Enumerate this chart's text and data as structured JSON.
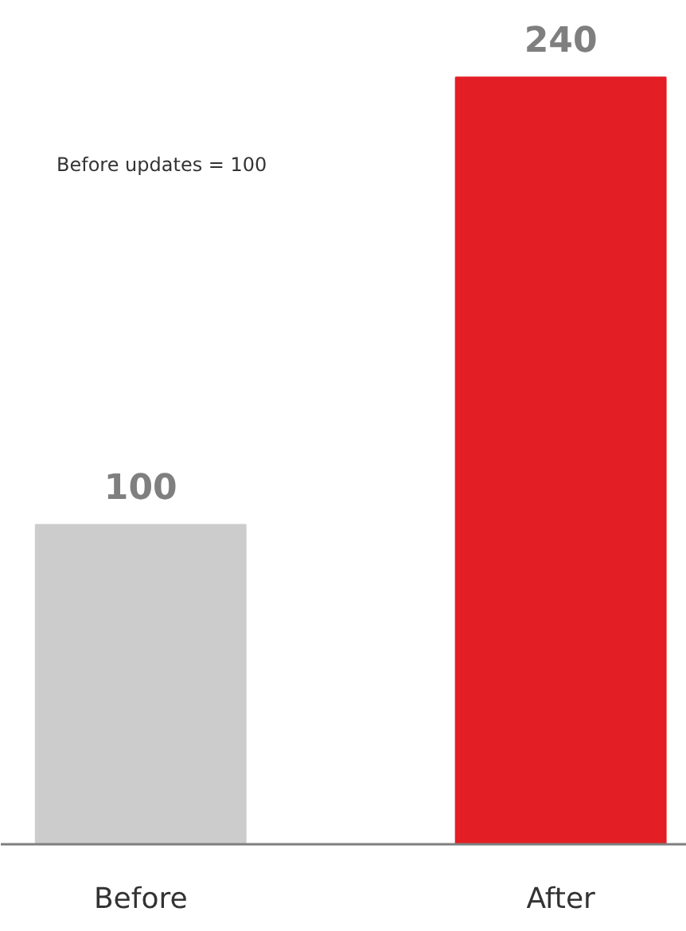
{
  "chart_data": {
    "type": "bar",
    "categories": [
      "Before",
      "After"
    ],
    "colors": [
      "#cccccc",
      "#e31e24"
    ],
    "values": [
      100,
      240
    ],
    "data_labels": true,
    "annotations": [
      "Before updates = 100"
    ],
    "grid": false
  }
}
